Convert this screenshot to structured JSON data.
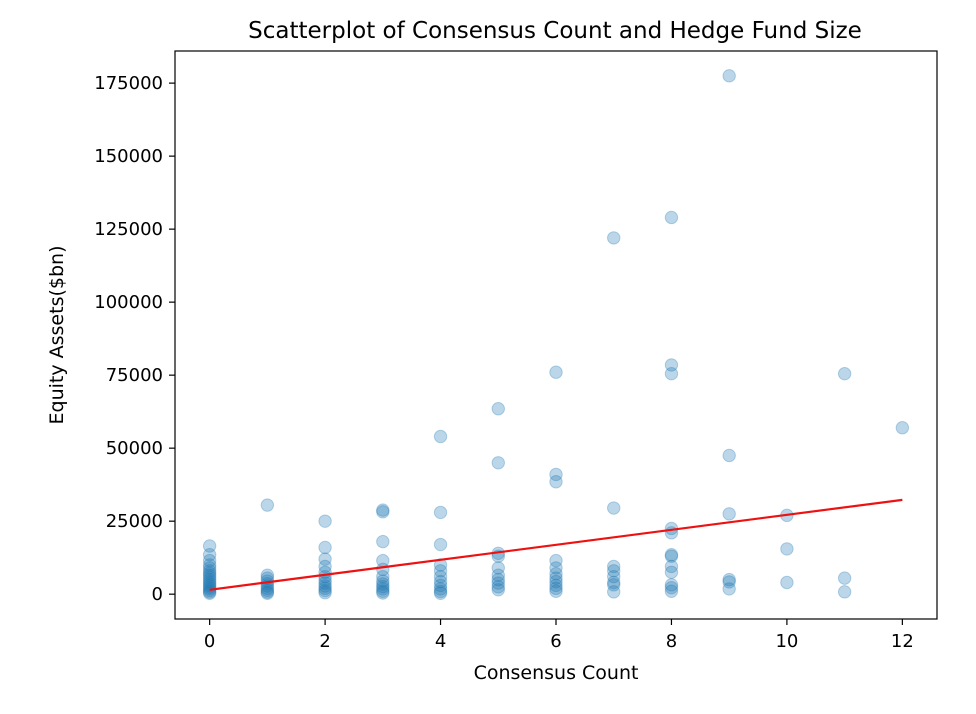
{
  "chart_data": {
    "type": "scatter",
    "title": "Scatterplot of Consensus Count and Hedge Fund Size",
    "xlabel": "Consensus Count",
    "ylabel": "Equity Assets($bn)",
    "xlim": [
      -0.6,
      12.6
    ],
    "ylim": [
      -8500,
      186000
    ],
    "xticks": [
      0,
      2,
      4,
      6,
      8,
      10,
      12
    ],
    "yticks": [
      0,
      25000,
      50000,
      75000,
      100000,
      125000,
      150000,
      175000
    ],
    "grid": false,
    "legend": false,
    "colors": {
      "points": "#1f77b4",
      "fit_line": "#ee1111"
    },
    "points": [
      {
        "x": 0,
        "y": 16500
      },
      {
        "x": 0,
        "y": 13500
      },
      {
        "x": 0,
        "y": 11500
      },
      {
        "x": 0,
        "y": 10000
      },
      {
        "x": 0,
        "y": 9000
      },
      {
        "x": 0,
        "y": 8000
      },
      {
        "x": 0,
        "y": 7200
      },
      {
        "x": 0,
        "y": 6500
      },
      {
        "x": 0,
        "y": 5800
      },
      {
        "x": 0,
        "y": 5000
      },
      {
        "x": 0,
        "y": 4300
      },
      {
        "x": 0,
        "y": 3600
      },
      {
        "x": 0,
        "y": 3000
      },
      {
        "x": 0,
        "y": 2400
      },
      {
        "x": 0,
        "y": 1800
      },
      {
        "x": 0,
        "y": 1200
      },
      {
        "x": 0,
        "y": 700
      },
      {
        "x": 0,
        "y": 300
      },
      {
        "x": 1,
        "y": 30500
      },
      {
        "x": 1,
        "y": 6500
      },
      {
        "x": 1,
        "y": 5500
      },
      {
        "x": 1,
        "y": 4500
      },
      {
        "x": 1,
        "y": 3600
      },
      {
        "x": 1,
        "y": 2800
      },
      {
        "x": 1,
        "y": 2000
      },
      {
        "x": 1,
        "y": 1300
      },
      {
        "x": 1,
        "y": 700
      },
      {
        "x": 1,
        "y": 300
      },
      {
        "x": 2,
        "y": 25000
      },
      {
        "x": 2,
        "y": 16000
      },
      {
        "x": 2,
        "y": 12000
      },
      {
        "x": 2,
        "y": 9500
      },
      {
        "x": 2,
        "y": 7500
      },
      {
        "x": 2,
        "y": 6000
      },
      {
        "x": 2,
        "y": 4800
      },
      {
        "x": 2,
        "y": 3800
      },
      {
        "x": 2,
        "y": 2800
      },
      {
        "x": 2,
        "y": 2000
      },
      {
        "x": 2,
        "y": 1200
      },
      {
        "x": 2,
        "y": 500
      },
      {
        "x": 3,
        "y": 28800
      },
      {
        "x": 3,
        "y": 28200
      },
      {
        "x": 3,
        "y": 18000
      },
      {
        "x": 3,
        "y": 11500
      },
      {
        "x": 3,
        "y": 8500
      },
      {
        "x": 3,
        "y": 6000
      },
      {
        "x": 3,
        "y": 4500
      },
      {
        "x": 3,
        "y": 3500
      },
      {
        "x": 3,
        "y": 2600
      },
      {
        "x": 3,
        "y": 1800
      },
      {
        "x": 3,
        "y": 1000
      },
      {
        "x": 3,
        "y": 400
      },
      {
        "x": 4,
        "y": 54000
      },
      {
        "x": 4,
        "y": 28000
      },
      {
        "x": 4,
        "y": 17000
      },
      {
        "x": 4,
        "y": 10000
      },
      {
        "x": 4,
        "y": 8000
      },
      {
        "x": 4,
        "y": 6000
      },
      {
        "x": 4,
        "y": 4300
      },
      {
        "x": 4,
        "y": 3000
      },
      {
        "x": 4,
        "y": 1800
      },
      {
        "x": 4,
        "y": 900
      },
      {
        "x": 4,
        "y": 300
      },
      {
        "x": 5,
        "y": 63500
      },
      {
        "x": 5,
        "y": 45000
      },
      {
        "x": 5,
        "y": 14000
      },
      {
        "x": 5,
        "y": 13000
      },
      {
        "x": 5,
        "y": 9000
      },
      {
        "x": 5,
        "y": 6500
      },
      {
        "x": 5,
        "y": 5000
      },
      {
        "x": 5,
        "y": 3800
      },
      {
        "x": 5,
        "y": 2500
      },
      {
        "x": 5,
        "y": 1500
      },
      {
        "x": 6,
        "y": 76000
      },
      {
        "x": 6,
        "y": 41000
      },
      {
        "x": 6,
        "y": 38500
      },
      {
        "x": 6,
        "y": 11500
      },
      {
        "x": 6,
        "y": 9000
      },
      {
        "x": 6,
        "y": 7000
      },
      {
        "x": 6,
        "y": 5500
      },
      {
        "x": 6,
        "y": 4300
      },
      {
        "x": 6,
        "y": 3000
      },
      {
        "x": 6,
        "y": 2000
      },
      {
        "x": 6,
        "y": 1000
      },
      {
        "x": 7,
        "y": 122000
      },
      {
        "x": 7,
        "y": 29500
      },
      {
        "x": 7,
        "y": 9500
      },
      {
        "x": 7,
        "y": 8000
      },
      {
        "x": 7,
        "y": 6000
      },
      {
        "x": 7,
        "y": 4000
      },
      {
        "x": 7,
        "y": 3200
      },
      {
        "x": 7,
        "y": 800
      },
      {
        "x": 8,
        "y": 129000
      },
      {
        "x": 8,
        "y": 78500
      },
      {
        "x": 8,
        "y": 75500
      },
      {
        "x": 8,
        "y": 22500
      },
      {
        "x": 8,
        "y": 21000
      },
      {
        "x": 8,
        "y": 13500
      },
      {
        "x": 8,
        "y": 13000
      },
      {
        "x": 8,
        "y": 9500
      },
      {
        "x": 8,
        "y": 7500
      },
      {
        "x": 8,
        "y": 3200
      },
      {
        "x": 8,
        "y": 2200
      },
      {
        "x": 8,
        "y": 1000
      },
      {
        "x": 9,
        "y": 177500
      },
      {
        "x": 9,
        "y": 47500
      },
      {
        "x": 9,
        "y": 27500
      },
      {
        "x": 9,
        "y": 5000
      },
      {
        "x": 9,
        "y": 4200
      },
      {
        "x": 9,
        "y": 1800
      },
      {
        "x": 10,
        "y": 27000
      },
      {
        "x": 10,
        "y": 15500
      },
      {
        "x": 10,
        "y": 4000
      },
      {
        "x": 11,
        "y": 75500
      },
      {
        "x": 11,
        "y": 5500
      },
      {
        "x": 11,
        "y": 800
      },
      {
        "x": 12,
        "y": 57000
      }
    ],
    "fit_line": {
      "x": [
        0,
        12
      ],
      "y": [
        1500,
        32300
      ]
    }
  }
}
